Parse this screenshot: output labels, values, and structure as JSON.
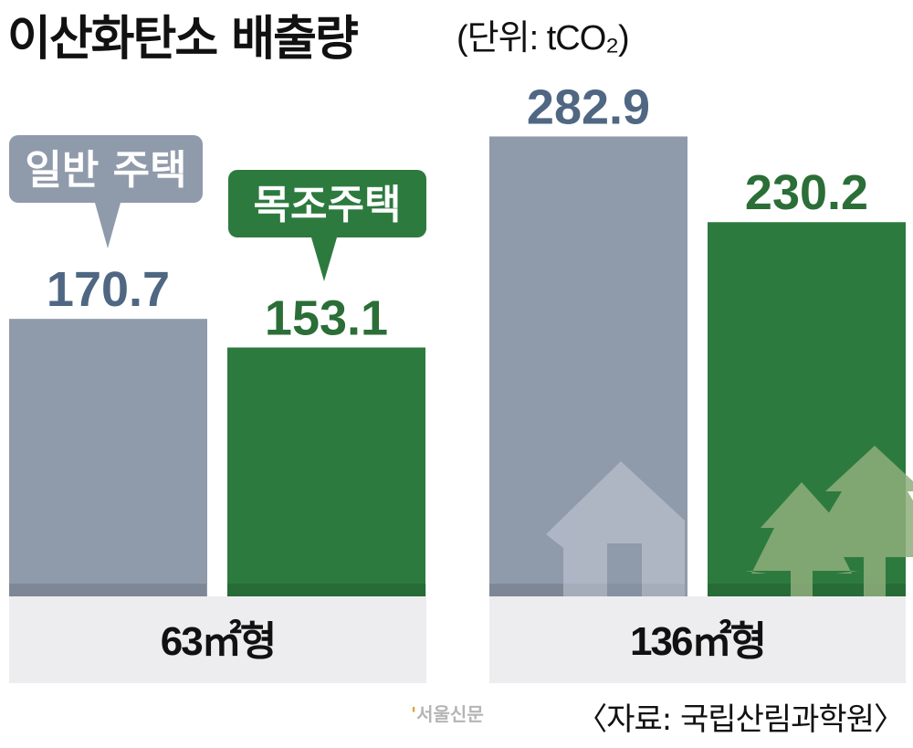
{
  "title": "이산화탄소 배출량",
  "unit": "(단위: tCO₂)",
  "source": "〈자료: 국립산림과학원〉",
  "logo": "서울신문",
  "colors": {
    "general": "#8f9aab",
    "wood": "#2d7a3f",
    "general_label": "#4f6782",
    "wood_label": "#2b6e37",
    "band": "#ededf0"
  },
  "chart_data": {
    "type": "bar",
    "title": "이산화탄소 배출량",
    "ylabel": "tCO₂",
    "categories": [
      "63㎡형",
      "136㎡형"
    ],
    "series": [
      {
        "name": "일반 주택",
        "values": [
          170.7,
          282.9
        ]
      },
      {
        "name": "목조주택",
        "values": [
          153.1,
          230.2
        ]
      }
    ],
    "labels": [
      [
        "170.7",
        "282.9"
      ],
      [
        "153.1",
        "230.2"
      ]
    ],
    "ylim": [
      0,
      300
    ],
    "grid": false,
    "legend": "callouts above first group"
  }
}
